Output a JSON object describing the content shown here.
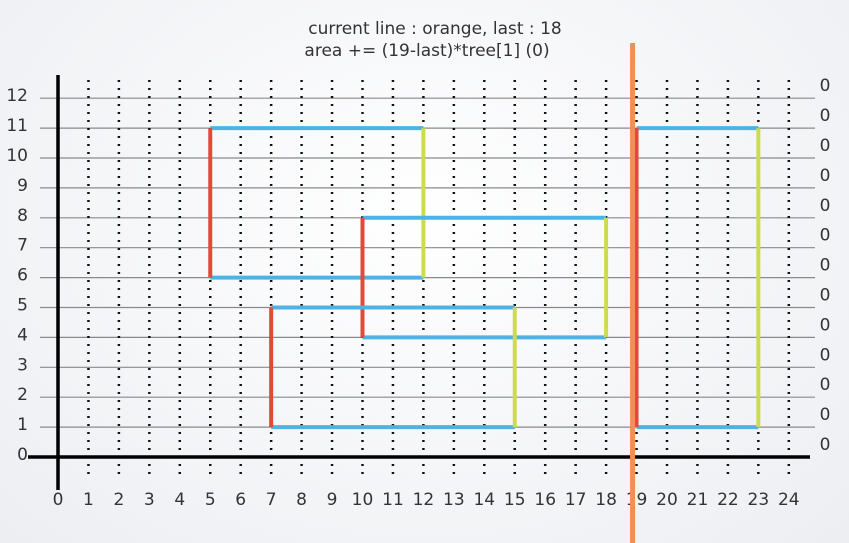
{
  "title": {
    "line1": "current line : orange, last : 18",
    "line2": "area += (19-last)*tree[1] (0)"
  },
  "axis": {
    "x_labels": [
      0,
      1,
      2,
      3,
      4,
      5,
      6,
      7,
      8,
      9,
      10,
      11,
      12,
      13,
      14,
      15,
      16,
      17,
      18,
      19,
      20,
      21,
      22,
      23,
      24
    ],
    "y_labels": [
      0,
      1,
      2,
      3,
      4,
      5,
      6,
      7,
      8,
      9,
      10,
      11,
      12
    ]
  },
  "rectangles": [
    {
      "x1": 5,
      "x2": 12,
      "y1": 6,
      "y2": 11
    },
    {
      "x1": 10,
      "x2": 18,
      "y1": 4,
      "y2": 8
    },
    {
      "x1": 7,
      "x2": 15,
      "y1": 1,
      "y2": 5
    },
    {
      "x1": 19,
      "x2": 23,
      "y1": 1,
      "y2": 11
    }
  ],
  "sweep_line_x": 19,
  "tree_values": [
    0,
    0,
    0,
    0,
    0,
    0,
    0,
    0,
    0,
    0,
    0,
    0,
    0
  ]
}
